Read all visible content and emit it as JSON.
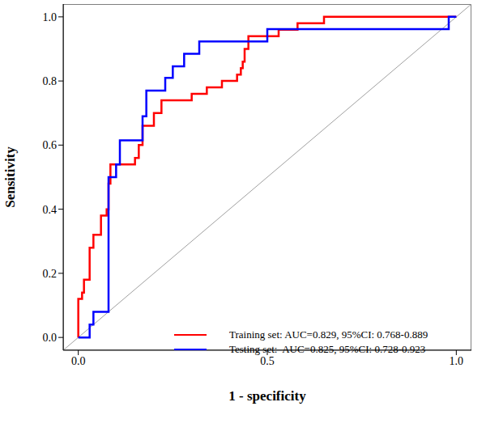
{
  "chart_data": {
    "type": "line",
    "x_label": "1 - specificity",
    "y_label": "Sensitivity",
    "xlim": [
      -0.04,
      1.04
    ],
    "ylim": [
      -0.04,
      1.04
    ],
    "xticks": [
      {
        "value": 0,
        "label": "0.0"
      },
      0.5,
      {
        "value": 1,
        "label": "1.0"
      }
    ],
    "yticks": [
      {
        "value": 0,
        "label": "0.0"
      },
      0.2,
      0.4,
      0.6,
      0.8,
      {
        "value": 1,
        "label": "1.0"
      }
    ],
    "grid": false,
    "legend": "bottom right",
    "series": [
      {
        "name": "Training set: AUC=0.829, 95%CI: 0.768-0.889",
        "color": "#ff0000",
        "x": [
          0,
          0,
          0.01,
          0.01,
          0.015,
          0.015,
          0.03,
          0.03,
          0.04,
          0.04,
          0.06,
          0.06,
          0.075,
          0.075,
          0.08,
          0.08,
          0.085,
          0.085,
          0.15,
          0.15,
          0.16,
          0.16,
          0.17,
          0.17,
          0.2,
          0.2,
          0.22,
          0.22,
          0.3,
          0.3,
          0.34,
          0.34,
          0.38,
          0.38,
          0.42,
          0.42,
          0.43,
          0.43,
          0.435,
          0.435,
          0.44,
          0.44,
          0.45,
          0.45,
          0.53,
          0.53,
          0.58,
          0.58,
          0.65,
          0.65,
          1.0
        ],
        "values": [
          0,
          0.12,
          0.12,
          0.14,
          0.14,
          0.18,
          0.18,
          0.28,
          0.28,
          0.32,
          0.32,
          0.38,
          0.38,
          0.4,
          0.4,
          0.48,
          0.48,
          0.54,
          0.54,
          0.56,
          0.56,
          0.6,
          0.6,
          0.66,
          0.66,
          0.7,
          0.7,
          0.74,
          0.74,
          0.76,
          0.76,
          0.78,
          0.78,
          0.8,
          0.8,
          0.82,
          0.82,
          0.84,
          0.84,
          0.86,
          0.86,
          0.9,
          0.9,
          0.94,
          0.94,
          0.96,
          0.96,
          0.98,
          0.98,
          1.0,
          1.0
        ]
      },
      {
        "name": "Testing set:  AUC=0.825, 95%CI: 0.728-0.923",
        "color": "#0000ff",
        "x": [
          0,
          0.03,
          0.03,
          0.04,
          0.04,
          0.08,
          0.08,
          0.1,
          0.1,
          0.11,
          0.11,
          0.17,
          0.17,
          0.18,
          0.18,
          0.23,
          0.23,
          0.25,
          0.25,
          0.28,
          0.28,
          0.32,
          0.32,
          0.5,
          0.5,
          0.98,
          0.98,
          1.0
        ],
        "values": [
          0,
          0,
          0.04,
          0.04,
          0.08,
          0.08,
          0.5,
          0.5,
          0.54,
          0.54,
          0.615,
          0.615,
          0.69,
          0.69,
          0.77,
          0.77,
          0.81,
          0.81,
          0.846,
          0.846,
          0.885,
          0.885,
          0.923,
          0.923,
          0.962,
          0.962,
          1.0,
          1.0
        ]
      }
    ]
  }
}
